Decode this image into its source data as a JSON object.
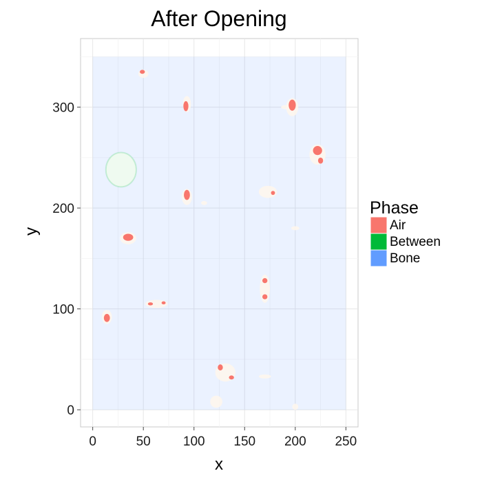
{
  "chart_data": {
    "type": "heatmap",
    "title": "After Opening",
    "xlabel": "x",
    "ylabel": "y",
    "xlim": [
      -12,
      262
    ],
    "ylim": [
      -17,
      368
    ],
    "x_ticks": [
      0,
      50,
      100,
      150,
      200,
      250
    ],
    "y_ticks": [
      0,
      100,
      200,
      300
    ],
    "grid": true,
    "legend": {
      "title": "Phase",
      "placement": "right",
      "entries": [
        {
          "label": "Air",
          "color": "#F8766D"
        },
        {
          "label": "Between",
          "color": "#00BA38"
        },
        {
          "label": "Bone",
          "color": "#619CFF"
        }
      ]
    },
    "bone_region": {
      "xmin": 0,
      "xmax": 250,
      "ymin": 0,
      "ymax": 350
    },
    "air_blobs": [
      {
        "x": 49,
        "y": 335,
        "rx": 2.5,
        "ry": 2
      },
      {
        "x": 92,
        "y": 301,
        "rx": 2.5,
        "ry": 5
      },
      {
        "x": 197,
        "y": 302,
        "rx": 3.5,
        "ry": 5.5
      },
      {
        "x": 222,
        "y": 257,
        "rx": 4.5,
        "ry": 4.5
      },
      {
        "x": 225,
        "y": 247,
        "rx": 2.5,
        "ry": 3
      },
      {
        "x": 93,
        "y": 213,
        "rx": 3,
        "ry": 5
      },
      {
        "x": 178,
        "y": 215,
        "rx": 2,
        "ry": 2
      },
      {
        "x": 35,
        "y": 171,
        "rx": 5,
        "ry": 3.5
      },
      {
        "x": 170,
        "y": 128,
        "rx": 2.5,
        "ry": 2.5
      },
      {
        "x": 170,
        "y": 112,
        "rx": 2.5,
        "ry": 2.5
      },
      {
        "x": 57,
        "y": 105,
        "rx": 2.5,
        "ry": 1.5
      },
      {
        "x": 70,
        "y": 106,
        "rx": 2,
        "ry": 1.5
      },
      {
        "x": 14,
        "y": 91,
        "rx": 3,
        "ry": 4
      },
      {
        "x": 126,
        "y": 42,
        "rx": 2.5,
        "ry": 3
      },
      {
        "x": 137,
        "y": 32,
        "rx": 2.5,
        "ry": 2
      }
    ],
    "faint_patches": [
      {
        "x": 50,
        "y": 333,
        "rx": 5,
        "ry": 4
      },
      {
        "x": 93,
        "y": 303,
        "rx": 4,
        "ry": 8
      },
      {
        "x": 197,
        "y": 300,
        "rx": 6,
        "ry": 9
      },
      {
        "x": 222,
        "y": 253,
        "rx": 8,
        "ry": 10
      },
      {
        "x": 93,
        "y": 211,
        "rx": 5,
        "ry": 8
      },
      {
        "x": 173,
        "y": 216,
        "rx": 9,
        "ry": 6
      },
      {
        "x": 35,
        "y": 170,
        "rx": 8,
        "ry": 6
      },
      {
        "x": 170,
        "y": 120,
        "rx": 5,
        "ry": 14
      },
      {
        "x": 63,
        "y": 105,
        "rx": 11,
        "ry": 4
      },
      {
        "x": 14,
        "y": 92,
        "rx": 5,
        "ry": 7
      },
      {
        "x": 131,
        "y": 37,
        "rx": 10,
        "ry": 9
      },
      {
        "x": 122,
        "y": 8,
        "rx": 6,
        "ry": 6
      },
      {
        "x": 190,
        "y": 300,
        "rx": 4,
        "ry": 2
      },
      {
        "x": 200,
        "y": 180,
        "rx": 4,
        "ry": 2
      },
      {
        "x": 170,
        "y": 33,
        "rx": 6,
        "ry": 2
      },
      {
        "x": 200,
        "y": 3,
        "rx": 3,
        "ry": 3
      },
      {
        "x": 110,
        "y": 205,
        "rx": 3,
        "ry": 2
      }
    ],
    "between_ring": {
      "x": 28,
      "y": 238,
      "rx": 15,
      "ry": 17
    }
  }
}
